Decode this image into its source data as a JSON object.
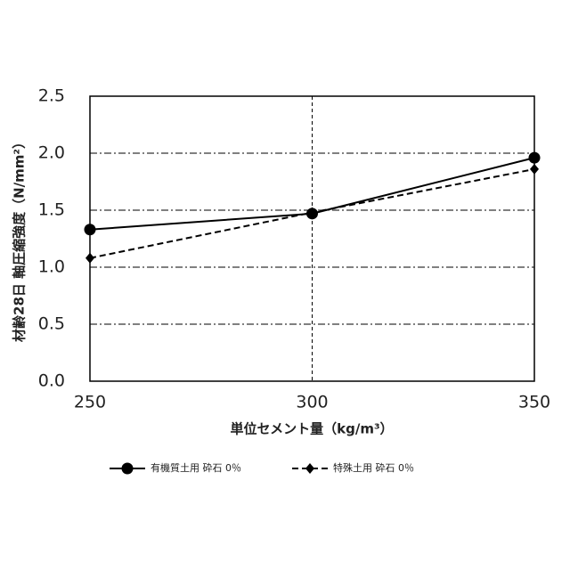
{
  "chart_data": {
    "type": "line",
    "x_label": "単位セメント量（kg/m³）",
    "y_label": "材齢28日 軸圧縮強度（N/mm²）",
    "x": [
      250,
      300,
      350
    ],
    "series": [
      {
        "name": "有機質土用 砕石 0％",
        "color": "#000000",
        "line": "solid",
        "marker": "circle",
        "values": [
          1.33,
          1.47,
          1.96
        ]
      },
      {
        "name": "特殊土用 砕石 0％",
        "color": "#000000",
        "line": "dashed",
        "marker": "diamond",
        "values": [
          1.08,
          1.48,
          1.86
        ]
      }
    ],
    "xlim": [
      250,
      350
    ],
    "xticks": [
      250,
      300,
      350
    ],
    "ylim": [
      0,
      2.5
    ],
    "yticks": [
      {
        "value": 0,
        "label": "0.0"
      },
      0.5,
      {
        "value": 1,
        "label": "1.0"
      },
      1.5,
      {
        "value": 2,
        "label": "2.0"
      },
      2.5
    ],
    "grid": true,
    "legend": "bottom"
  }
}
